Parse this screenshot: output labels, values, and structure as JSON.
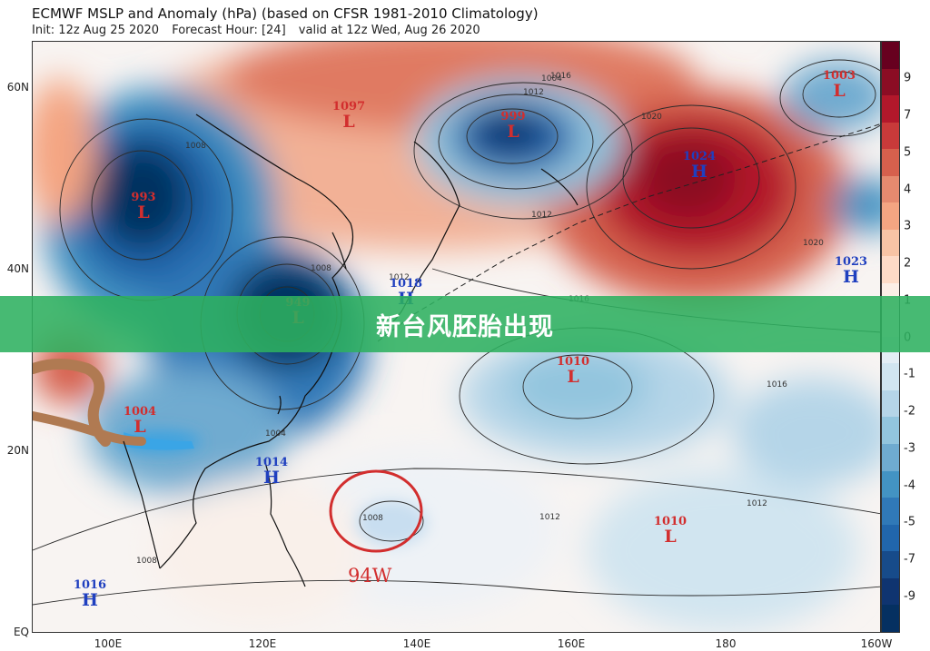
{
  "header": {
    "title": "ECMWF MSLP and Anomaly (hPa) (based on CFSR 1981-2010 Climatology)",
    "init": "Init: 12z Aug 25 2020",
    "forecast": "Forecast Hour: [24]",
    "valid": "valid at 12z Wed, Aug 26 2020"
  },
  "axes": {
    "lat_labels": [
      "60N",
      "40N",
      "20N",
      "EQ"
    ],
    "lon_labels": [
      "100E",
      "120E",
      "140E",
      "160E",
      "180",
      "160W"
    ]
  },
  "colorbar": {
    "labels": [
      "9",
      "7",
      "5",
      "4",
      "3",
      "2",
      "1",
      "0",
      "-1",
      "-2",
      "-3",
      "-4",
      "-5",
      "-7",
      "-9"
    ],
    "colors": [
      "#67001f",
      "#8b0d24",
      "#b2182b",
      "#c83a3a",
      "#d6604d",
      "#e58a6f",
      "#f4a582",
      "#f7c4a5",
      "#fddbc7",
      "#fbeee6",
      "#f7f7f7",
      "#e4eef5",
      "#d1e5f0",
      "#b5d5e8",
      "#92c5de",
      "#6fabd0",
      "#4393c3",
      "#3079b8",
      "#2166ac",
      "#174b8a",
      "#0f3470",
      "#053061"
    ]
  },
  "pressure_labels": [
    {
      "value": "1097",
      "letter": "L",
      "type": "low"
    },
    {
      "value": "999",
      "letter": "L",
      "type": "low"
    },
    {
      "value": "1003",
      "letter": "L",
      "type": "low"
    },
    {
      "value": "993",
      "letter": "L",
      "type": "low"
    },
    {
      "value": "1024",
      "letter": "H",
      "type": "high"
    },
    {
      "value": "1023",
      "letter": "H",
      "type": "high"
    },
    {
      "value": "1018",
      "letter": "H",
      "type": "high"
    },
    {
      "value": "949",
      "letter": "L",
      "type": "low"
    },
    {
      "value": "1010",
      "letter": "L",
      "type": "low"
    },
    {
      "value": "1010",
      "letter": "L",
      "type": "low"
    },
    {
      "value": "1014",
      "letter": "H",
      "type": "high"
    },
    {
      "value": "1016",
      "letter": "H",
      "type": "high"
    },
    {
      "value": "1004",
      "letter": "L",
      "type": "low"
    }
  ],
  "isobar_labels": [
    "1004",
    "1008",
    "1012",
    "1016",
    "1020",
    "1008",
    "1012",
    "1012",
    "1016",
    "1016",
    "1020",
    "1012",
    "1008",
    "1012",
    "1008",
    "1004"
  ],
  "annotation": {
    "label": "94W",
    "color": "#d22e2e"
  },
  "banner": {
    "text": "新台风胚胎出现",
    "color": "#2eb060"
  }
}
